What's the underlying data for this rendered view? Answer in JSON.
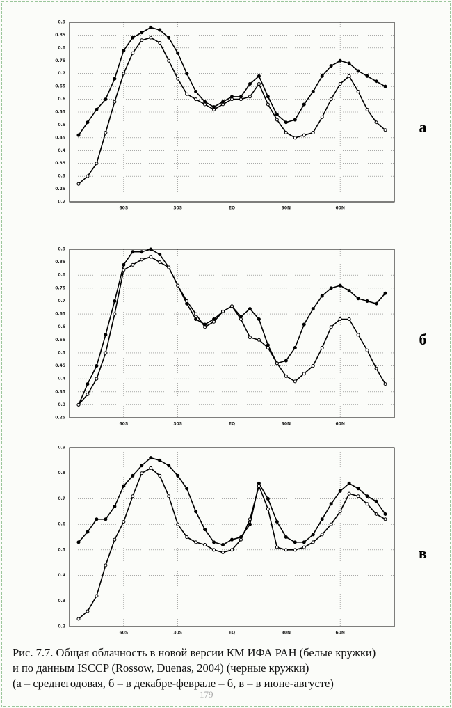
{
  "chart_data": [
    {
      "type": "line",
      "panel_label": "а",
      "xlim": [
        -90,
        90
      ],
      "ylim": [
        0.2,
        0.9
      ],
      "grid": true,
      "xticks": [
        {
          "value": -60,
          "label": "60S"
        },
        {
          "value": -30,
          "label": "30S"
        },
        {
          "value": 0,
          "label": "EQ"
        },
        {
          "value": 30,
          "label": "30N"
        },
        {
          "value": 60,
          "label": "60N"
        }
      ],
      "yticks": [
        0.2,
        0.25,
        0.3,
        0.35,
        0.4,
        0.45,
        0.5,
        0.55,
        0.6,
        0.65,
        0.7,
        0.75,
        0.8,
        0.85,
        0.9
      ],
      "x": [
        -85,
        -80,
        -75,
        -70,
        -65,
        -60,
        -55,
        -50,
        -45,
        -40,
        -35,
        -30,
        -25,
        -20,
        -15,
        -10,
        -5,
        0,
        5,
        10,
        15,
        20,
        25,
        30,
        35,
        40,
        45,
        50,
        55,
        60,
        65,
        70,
        75,
        80,
        85
      ],
      "series": [
        {
          "color": "#000000",
          "marker": "filled",
          "values": [
            0.46,
            0.51,
            0.56,
            0.6,
            0.68,
            0.79,
            0.84,
            0.86,
            0.88,
            0.87,
            0.84,
            0.78,
            0.7,
            0.63,
            0.59,
            0.57,
            0.59,
            0.61,
            0.61,
            0.66,
            0.69,
            0.61,
            0.54,
            0.51,
            0.52,
            0.58,
            0.63,
            0.69,
            0.73,
            0.75,
            0.74,
            0.71,
            0.69,
            0.67,
            0.65
          ]
        },
        {
          "color": "#000000",
          "marker": "open",
          "values": [
            0.27,
            0.3,
            0.35,
            0.47,
            0.59,
            0.7,
            0.78,
            0.83,
            0.84,
            0.82,
            0.75,
            0.68,
            0.62,
            0.6,
            0.58,
            0.56,
            0.58,
            0.6,
            0.6,
            0.61,
            0.66,
            0.58,
            0.52,
            0.47,
            0.45,
            0.46,
            0.47,
            0.53,
            0.6,
            0.66,
            0.69,
            0.63,
            0.56,
            0.51,
            0.48
          ]
        }
      ]
    },
    {
      "type": "line",
      "panel_label": "б",
      "xlim": [
        -90,
        90
      ],
      "ylim": [
        0.25,
        0.9
      ],
      "grid": true,
      "xticks": [
        {
          "value": -60,
          "label": "60S"
        },
        {
          "value": -30,
          "label": "30S"
        },
        {
          "value": 0,
          "label": "EQ"
        },
        {
          "value": 30,
          "label": "30N"
        },
        {
          "value": 60,
          "label": "60N"
        }
      ],
      "yticks": [
        0.25,
        0.3,
        0.35,
        0.4,
        0.45,
        0.5,
        0.55,
        0.6,
        0.65,
        0.7,
        0.75,
        0.8,
        0.85,
        0.9
      ],
      "x": [
        -85,
        -80,
        -75,
        -70,
        -65,
        -60,
        -55,
        -50,
        -45,
        -40,
        -35,
        -30,
        -25,
        -20,
        -15,
        -10,
        -5,
        0,
        5,
        10,
        15,
        20,
        25,
        30,
        35,
        40,
        45,
        50,
        55,
        60,
        65,
        70,
        75,
        80,
        85
      ],
      "series": [
        {
          "color": "#000000",
          "marker": "filled",
          "values": [
            0.3,
            0.38,
            0.45,
            0.57,
            0.7,
            0.84,
            0.89,
            0.89,
            0.9,
            0.88,
            0.83,
            0.76,
            0.69,
            0.63,
            0.61,
            0.63,
            0.66,
            0.68,
            0.64,
            0.67,
            0.63,
            0.53,
            0.46,
            0.47,
            0.52,
            0.61,
            0.67,
            0.72,
            0.75,
            0.76,
            0.74,
            0.71,
            0.7,
            0.69,
            0.73
          ]
        },
        {
          "color": "#000000",
          "marker": "open",
          "values": [
            0.3,
            0.34,
            0.4,
            0.5,
            0.65,
            0.82,
            0.84,
            0.86,
            0.87,
            0.85,
            0.83,
            0.76,
            0.7,
            0.65,
            0.6,
            0.62,
            0.66,
            0.68,
            0.63,
            0.56,
            0.55,
            0.52,
            0.46,
            0.41,
            0.39,
            0.42,
            0.45,
            0.52,
            0.6,
            0.63,
            0.63,
            0.57,
            0.51,
            0.44,
            0.38
          ]
        }
      ]
    },
    {
      "type": "line",
      "panel_label": "в",
      "xlim": [
        -90,
        90
      ],
      "ylim": [
        0.2,
        0.9
      ],
      "grid": true,
      "xticks": [
        {
          "value": -60,
          "label": "60S"
        },
        {
          "value": -30,
          "label": "30S"
        },
        {
          "value": 0,
          "label": "EQ"
        },
        {
          "value": 30,
          "label": "30N"
        },
        {
          "value": 60,
          "label": "60N"
        }
      ],
      "yticks": [
        0.2,
        0.3,
        0.4,
        0.5,
        0.6,
        0.7,
        0.8,
        0.9
      ],
      "x": [
        -85,
        -80,
        -75,
        -70,
        -65,
        -60,
        -55,
        -50,
        -45,
        -40,
        -35,
        -30,
        -25,
        -20,
        -15,
        -10,
        -5,
        0,
        5,
        10,
        15,
        20,
        25,
        30,
        35,
        40,
        45,
        50,
        55,
        60,
        65,
        70,
        75,
        80,
        85
      ],
      "series": [
        {
          "color": "#000000",
          "marker": "filled",
          "values": [
            0.53,
            0.57,
            0.62,
            0.62,
            0.67,
            0.75,
            0.79,
            0.83,
            0.86,
            0.85,
            0.83,
            0.79,
            0.74,
            0.65,
            0.58,
            0.53,
            0.52,
            0.54,
            0.55,
            0.6,
            0.76,
            0.7,
            0.61,
            0.55,
            0.53,
            0.53,
            0.56,
            0.62,
            0.68,
            0.73,
            0.76,
            0.74,
            0.71,
            0.69,
            0.64
          ]
        },
        {
          "color": "#000000",
          "marker": "open",
          "values": [
            0.23,
            0.26,
            0.32,
            0.44,
            0.54,
            0.61,
            0.71,
            0.8,
            0.82,
            0.79,
            0.71,
            0.6,
            0.55,
            0.53,
            0.52,
            0.5,
            0.49,
            0.5,
            0.54,
            0.62,
            0.75,
            0.66,
            0.51,
            0.5,
            0.5,
            0.51,
            0.53,
            0.56,
            0.6,
            0.65,
            0.72,
            0.71,
            0.68,
            0.64,
            0.62
          ]
        }
      ]
    }
  ],
  "caption": [
    "Рис. 7.7. Общая облачность в новой версии КМ ИФА РАН (белые кружки)",
    "и по данным ISCCP (Rossow, Duenas, 2004) (черные кружки)",
    "(а – среднегодовая, б – в декабре-феврале – б, в – в июне-августе)"
  ],
  "page_number": "179"
}
